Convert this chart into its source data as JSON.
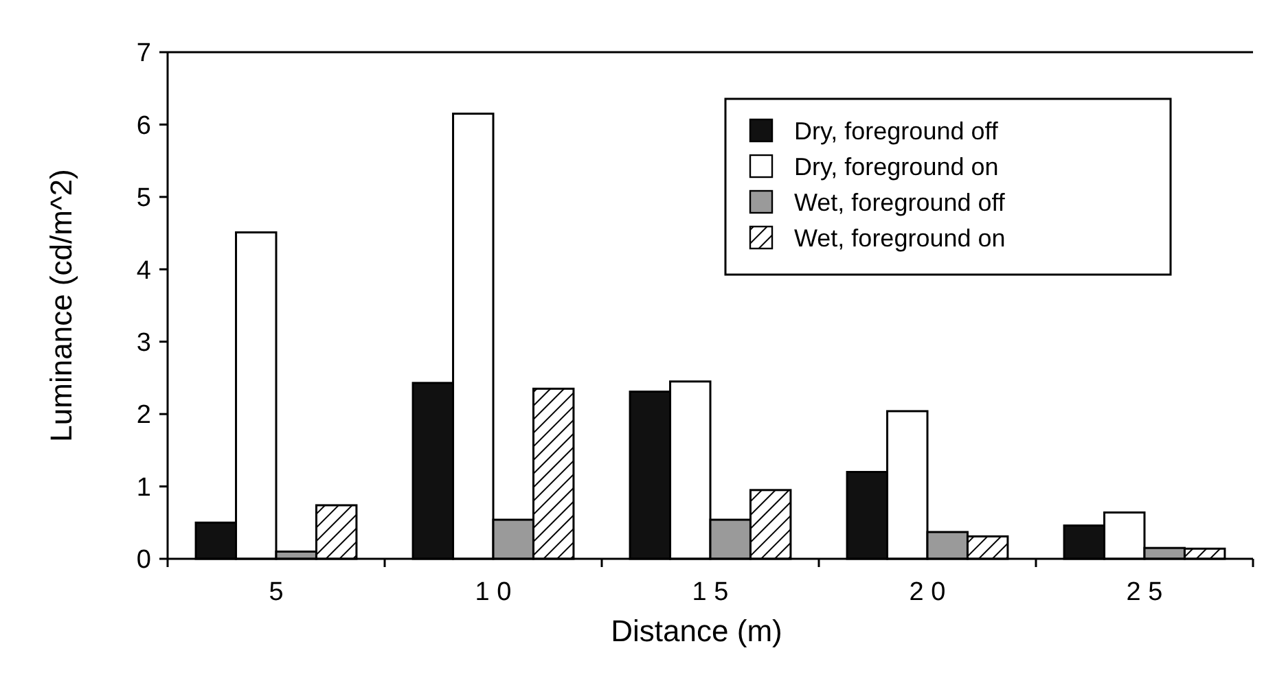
{
  "chart_data": {
    "type": "bar",
    "xlabel": "Distance  (m)",
    "ylabel": "Luminance  (cd/m^2)",
    "categories": [
      "5",
      "1 0",
      "1 5",
      "2 0",
      "2 5"
    ],
    "series": [
      {
        "name": "Dry, foreground off",
        "color": "#111111",
        "values": [
          0.5,
          2.43,
          2.31,
          1.2,
          0.46
        ]
      },
      {
        "name": "Dry, foreground on",
        "color": "#ffffff",
        "values": [
          4.51,
          6.15,
          2.45,
          2.04,
          0.64
        ]
      },
      {
        "name": "Wet, foreground off",
        "color": "#9a9a9a",
        "values": [
          0.1,
          0.54,
          0.54,
          0.37,
          0.15
        ]
      },
      {
        "name": "Wet, foreground on",
        "color": "#000000",
        "values": [
          0.74,
          2.35,
          0.95,
          0.31,
          0.14
        ]
      }
    ],
    "ylim": [
      0,
      7
    ],
    "yticks": [
      0,
      1,
      2,
      3,
      4,
      5,
      6,
      7
    ],
    "legend": "top right",
    "grid": false
  }
}
